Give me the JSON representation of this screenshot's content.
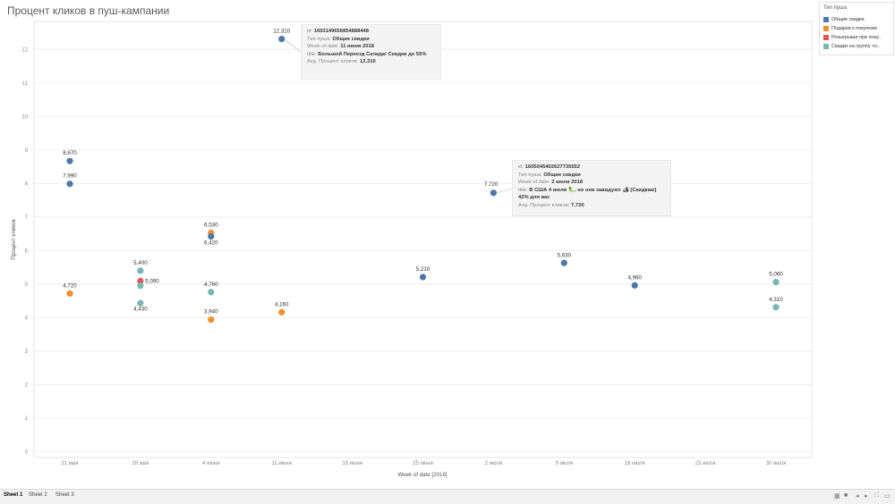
{
  "title": "Процент кликов в пуш-кампании",
  "colors": {
    "Общие скидки": "#4e79a7",
    "Подарки к покупкам": "#f28e2b",
    "Розыгрыши при поку..": "#e15759",
    "Скидки на группу то..": "#76b7b2"
  },
  "legend": {
    "title": "Тип пуша",
    "items": [
      "Общие скидки",
      "Подарки к покупкам",
      "Розыгрыши при поку..",
      "Скидки на группу то.."
    ]
  },
  "chart_data": {
    "type": "scatter",
    "xlabel": "Week of date [2018]",
    "ylabel": "Процент кликов",
    "ylim": [
      0,
      13
    ],
    "yticks": [
      0,
      1,
      2,
      3,
      4,
      5,
      6,
      7,
      8,
      9,
      10,
      11,
      12
    ],
    "categories": [
      "21 мая",
      "28 мая",
      "4 июня",
      "11 июня",
      "18 июня",
      "25 июня",
      "2 июля",
      "9 июля",
      "16 июля",
      "23 июля",
      "30 июля"
    ],
    "grid": true,
    "legend_position": "top-right",
    "points": [
      {
        "x": "21 мая",
        "y": 8.67,
        "label": "8,670",
        "series": "Общие скидки"
      },
      {
        "x": "21 мая",
        "y": 7.99,
        "label": "7,990",
        "series": "Общие скидки"
      },
      {
        "x": "21 мая",
        "y": 4.72,
        "label": "4,720",
        "series": "Подарки к покупкам"
      },
      {
        "x": "28 мая",
        "y": 5.4,
        "label": "5,400",
        "series": "Скидки на группу то.."
      },
      {
        "x": "28 мая",
        "y": 5.09,
        "label": "5,090",
        "series": "Розыгрыши при поку.."
      },
      {
        "x": "28 мая",
        "y": 4.95,
        "label": "",
        "series": "Скидки на группу то.."
      },
      {
        "x": "28 мая",
        "y": 4.43,
        "label": "4,430",
        "series": "Скидки на группу то.."
      },
      {
        "x": "4 июня",
        "y": 6.53,
        "label": "6,530",
        "series": "Подарки к покупкам"
      },
      {
        "x": "4 июня",
        "y": 6.42,
        "label": "6,420",
        "series": "Общие скидки"
      },
      {
        "x": "4 июня",
        "y": 4.76,
        "label": "4,760",
        "series": "Скидки на группу то.."
      },
      {
        "x": "4 июня",
        "y": 3.94,
        "label": "3,940",
        "series": "Подарки к покупкам"
      },
      {
        "x": "11 июня",
        "y": 12.31,
        "label": "12,310",
        "series": "Общие скидки"
      },
      {
        "x": "11 июня",
        "y": 4.16,
        "label": "4,160",
        "series": "Подарки к покупкам"
      },
      {
        "x": "25 июня",
        "y": 5.21,
        "label": "5,210",
        "series": "Общие скидки"
      },
      {
        "x": "2 июля",
        "y": 7.72,
        "label": "7,720",
        "series": "Общие скидки"
      },
      {
        "x": "9 июля",
        "y": 5.63,
        "label": "5,630",
        "series": "Общие скидки"
      },
      {
        "x": "16 июля",
        "y": 4.96,
        "label": "4,960",
        "series": "Общие скидки"
      },
      {
        "x": "30 июля",
        "y": 5.06,
        "label": "5,060",
        "series": "Скидки на группу то.."
      },
      {
        "x": "30 июля",
        "y": 4.31,
        "label": "4,310",
        "series": "Скидки на группу то.."
      }
    ]
  },
  "tooltips": [
    {
      "id_label": "id:",
      "id_value": "1603149656854888448",
      "type_label": "Тип пуша:",
      "type_value": "Общие скидки",
      "week_label": "Week of date:",
      "week_value": "11 июня 2018",
      "title_label": "title:",
      "title_value": "Большой Переезд Склада! Скидки до 55%",
      "avg_label": "Avg. Процент кликов:",
      "avg_value": "12,310"
    },
    {
      "id_label": "id:",
      "id_value": "1605045402627735552",
      "type_label": "Тип пуша:",
      "type_value": "Общие скидки",
      "week_label": "Week of date:",
      "week_value": "2 июля 2018",
      "title_label": "title:",
      "title_value": "В США 4 июля 🦜, но они завидуют 🏕 [Скидкам] 42% для вас",
      "avg_label": "Avg. Процент кликов:",
      "avg_value": "7,720"
    }
  ],
  "sheets": [
    "Sheet 1",
    "Sheet 2",
    "Sheet 3"
  ]
}
